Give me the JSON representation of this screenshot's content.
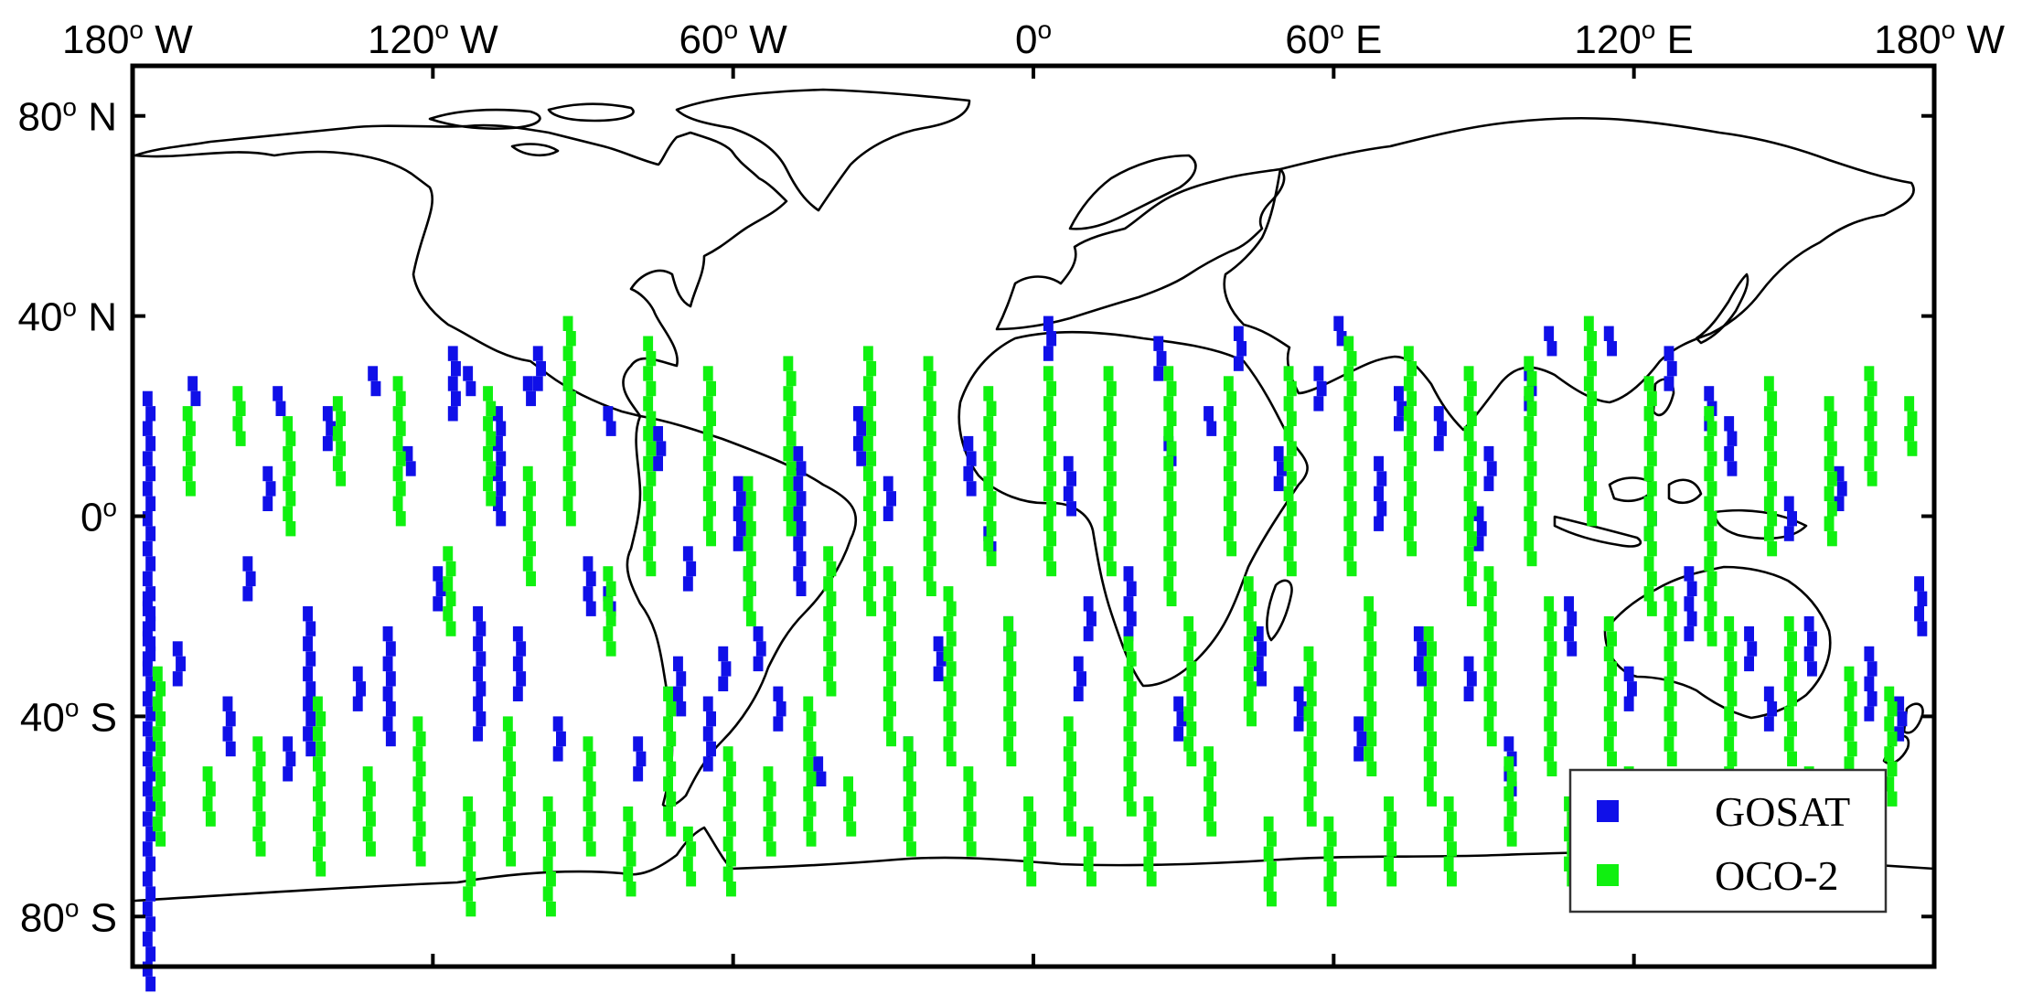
{
  "map": {
    "x_ticks": [
      {
        "lon": -180,
        "deg": "180",
        "suffix": " W"
      },
      {
        "lon": -120,
        "deg": "120",
        "suffix": " W"
      },
      {
        "lon": -60,
        "deg": "60",
        "suffix": " W"
      },
      {
        "lon": 0,
        "deg": "0",
        "suffix": ""
      },
      {
        "lon": 60,
        "deg": "60",
        "suffix": " E"
      },
      {
        "lon": 120,
        "deg": "120",
        "suffix": " E"
      },
      {
        "lon": 180,
        "deg": "180",
        "suffix": " W"
      }
    ],
    "y_ticks": [
      {
        "lat": 80,
        "deg": "80",
        "suffix": " N"
      },
      {
        "lat": 40,
        "deg": "40",
        "suffix": " N"
      },
      {
        "lat": 0,
        "deg": "0",
        "suffix": ""
      },
      {
        "lat": -40,
        "deg": "40",
        "suffix": " S"
      },
      {
        "lat": -80,
        "deg": "80",
        "suffix": " S"
      }
    ],
    "degree_symbol": "o",
    "lon_range": [
      -180,
      180
    ],
    "lat_range": [
      -90,
      90
    ],
    "legend": [
      {
        "label": "GOSAT",
        "color": "#1010e8"
      },
      {
        "label": "OCO-2",
        "color": "#10f010"
      }
    ],
    "legend_position": "bottom-right",
    "coastline_color": "#000000",
    "cell_size_deg": [
      2,
      3
    ],
    "gosat_tracks": [
      [
        -178,
        25,
        40
      ],
      [
        -178,
        -15,
        5
      ],
      [
        -172,
        -25,
        3
      ],
      [
        -169,
        28,
        2
      ],
      [
        -162,
        -36,
        4
      ],
      [
        -158,
        -8,
        3
      ],
      [
        -154,
        10,
        3
      ],
      [
        -152,
        26,
        2
      ],
      [
        -150,
        -44,
        3
      ],
      [
        -146,
        -18,
        10
      ],
      [
        -142,
        22,
        3
      ],
      [
        -136,
        -30,
        3
      ],
      [
        -133,
        30,
        2
      ],
      [
        -130,
        -22,
        8
      ],
      [
        -126,
        14,
        2
      ],
      [
        -120,
        -10,
        3
      ],
      [
        -117,
        34,
        5
      ],
      [
        -112,
        -18,
        9
      ],
      [
        -108,
        22,
        8
      ],
      [
        -104,
        -22,
        5
      ],
      [
        -100,
        34,
        3
      ],
      [
        -96,
        -40,
        3
      ],
      [
        -94,
        28,
        3
      ],
      [
        -90,
        -8,
        4
      ],
      [
        -86,
        22,
        2
      ],
      [
        -80,
        -44,
        3
      ],
      [
        -76,
        18,
        3
      ],
      [
        -70,
        -6,
        3
      ],
      [
        -66,
        -36,
        5
      ],
      [
        -63,
        -26,
        3
      ],
      [
        -60,
        8,
        5
      ],
      [
        -56,
        -22,
        3
      ],
      [
        -52,
        -34,
        3
      ],
      [
        -48,
        14,
        10
      ],
      [
        -44,
        -48,
        2
      ],
      [
        -36,
        22,
        4
      ],
      [
        -30,
        8,
        3
      ],
      [
        -26,
        -44,
        3
      ],
      [
        -20,
        -24,
        3
      ],
      [
        -14,
        16,
        4
      ],
      [
        -10,
        -2,
        2
      ],
      [
        -6,
        -20,
        3
      ],
      [
        2,
        40,
        3
      ],
      [
        6,
        12,
        4
      ],
      [
        10,
        -16,
        3
      ],
      [
        18,
        -10,
        5
      ],
      [
        24,
        36,
        3
      ],
      [
        28,
        -36,
        3
      ],
      [
        34,
        22,
        2
      ],
      [
        40,
        38,
        3
      ],
      [
        44,
        -22,
        4
      ],
      [
        48,
        14,
        3
      ],
      [
        52,
        -34,
        3
      ],
      [
        56,
        30,
        3
      ],
      [
        60,
        40,
        2
      ],
      [
        64,
        -40,
        3
      ],
      [
        68,
        12,
        5
      ],
      [
        72,
        26,
        3
      ],
      [
        76,
        -22,
        4
      ],
      [
        80,
        22,
        3
      ],
      [
        86,
        -28,
        3
      ],
      [
        90,
        14,
        3
      ],
      [
        94,
        -44,
        4
      ],
      [
        98,
        30,
        3
      ],
      [
        102,
        38,
        2
      ],
      [
        106,
        -16,
        4
      ],
      [
        110,
        16,
        3
      ],
      [
        114,
        38,
        2
      ],
      [
        118,
        -30,
        3
      ],
      [
        122,
        4,
        3
      ],
      [
        126,
        34,
        3
      ],
      [
        130,
        -10,
        5
      ],
      [
        134,
        26,
        3
      ],
      [
        138,
        20,
        4
      ],
      [
        142,
        -22,
        3
      ],
      [
        146,
        -34,
        3
      ],
      [
        150,
        4,
        3
      ],
      [
        154,
        -20,
        4
      ],
      [
        160,
        10,
        3
      ],
      [
        166,
        -26,
        5
      ],
      [
        172,
        -36,
        3
      ],
      [
        176,
        -12,
        4
      ],
      [
        -114,
        30,
        2
      ],
      [
        -102,
        28,
        2
      ],
      [
        -72,
        -28,
        4
      ],
      [
        -58,
        -10,
        3
      ],
      [
        -86,
        -14,
        2
      ],
      [
        8,
        -28,
        3
      ],
      [
        26,
        16,
        2
      ],
      [
        88,
        2,
        3
      ]
    ],
    "oco2_tracks": [
      [
        -176,
        -30,
        12
      ],
      [
        -170,
        22,
        6
      ],
      [
        -166,
        -50,
        4
      ],
      [
        -160,
        26,
        4
      ],
      [
        -156,
        -44,
        8
      ],
      [
        -150,
        20,
        8
      ],
      [
        -144,
        -36,
        12
      ],
      [
        -140,
        24,
        6
      ],
      [
        -134,
        -50,
        6
      ],
      [
        -128,
        28,
        10
      ],
      [
        -124,
        -40,
        10
      ],
      [
        -118,
        -6,
        6
      ],
      [
        -114,
        -56,
        8
      ],
      [
        -110,
        26,
        8
      ],
      [
        -106,
        -40,
        10
      ],
      [
        -102,
        10,
        8
      ],
      [
        -98,
        -56,
        8
      ],
      [
        -94,
        40,
        14
      ],
      [
        -90,
        -44,
        8
      ],
      [
        -86,
        -10,
        6
      ],
      [
        -82,
        -58,
        6
      ],
      [
        -78,
        36,
        16
      ],
      [
        -74,
        -34,
        10
      ],
      [
        -70,
        -62,
        4
      ],
      [
        -66,
        30,
        12
      ],
      [
        -62,
        -46,
        10
      ],
      [
        -58,
        8,
        10
      ],
      [
        -54,
        -50,
        6
      ],
      [
        -50,
        32,
        12
      ],
      [
        -46,
        -36,
        10
      ],
      [
        -42,
        -6,
        10
      ],
      [
        -38,
        -52,
        4
      ],
      [
        -34,
        34,
        18
      ],
      [
        -30,
        -10,
        12
      ],
      [
        -26,
        -44,
        8
      ],
      [
        -22,
        32,
        16
      ],
      [
        -18,
        -14,
        12
      ],
      [
        -14,
        -50,
        6
      ],
      [
        -10,
        26,
        12
      ],
      [
        -6,
        -20,
        10
      ],
      [
        -2,
        -56,
        6
      ],
      [
        2,
        30,
        14
      ],
      [
        6,
        -40,
        8
      ],
      [
        10,
        -62,
        4
      ],
      [
        14,
        30,
        14
      ],
      [
        18,
        -24,
        12
      ],
      [
        22,
        -56,
        6
      ],
      [
        26,
        30,
        16
      ],
      [
        30,
        -20,
        10
      ],
      [
        34,
        -46,
        6
      ],
      [
        38,
        28,
        12
      ],
      [
        42,
        -12,
        10
      ],
      [
        46,
        -60,
        6
      ],
      [
        50,
        30,
        14
      ],
      [
        54,
        -26,
        12
      ],
      [
        58,
        -60,
        6
      ],
      [
        62,
        36,
        16
      ],
      [
        66,
        -16,
        12
      ],
      [
        70,
        -56,
        6
      ],
      [
        74,
        34,
        14
      ],
      [
        78,
        -22,
        12
      ],
      [
        82,
        -56,
        6
      ],
      [
        86,
        30,
        16
      ],
      [
        90,
        -10,
        12
      ],
      [
        94,
        -48,
        6
      ],
      [
        98,
        32,
        14
      ],
      [
        102,
        -16,
        12
      ],
      [
        106,
        -56,
        6
      ],
      [
        110,
        40,
        14
      ],
      [
        114,
        -20,
        10
      ],
      [
        118,
        -50,
        6
      ],
      [
        122,
        28,
        16
      ],
      [
        126,
        -14,
        12
      ],
      [
        130,
        -56,
        6
      ],
      [
        134,
        22,
        16
      ],
      [
        138,
        -20,
        12
      ],
      [
        142,
        -52,
        6
      ],
      [
        146,
        28,
        12
      ],
      [
        150,
        -20,
        10
      ],
      [
        154,
        -50,
        6
      ],
      [
        158,
        24,
        10
      ],
      [
        162,
        -30,
        10
      ],
      [
        166,
        30,
        8
      ],
      [
        170,
        -34,
        8
      ],
      [
        174,
        24,
        4
      ]
    ]
  }
}
